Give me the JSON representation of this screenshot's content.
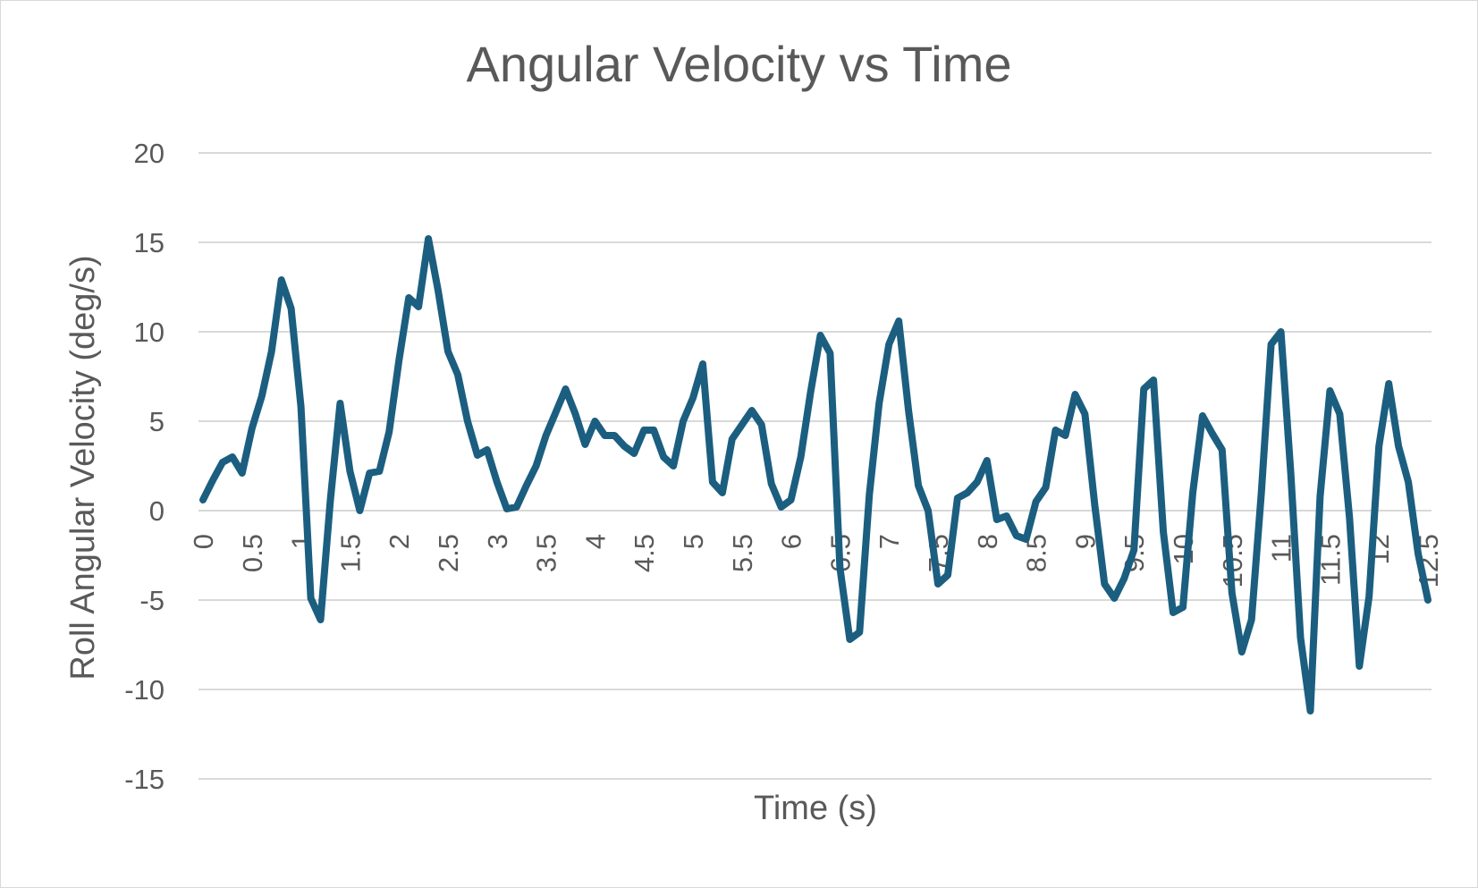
{
  "chart_data": {
    "type": "line",
    "title": "Angular Velocity vs Time",
    "xlabel": "Time (s)",
    "ylabel": "Roll Angular Velocity (deg/s)",
    "ylim": [
      -15,
      20
    ],
    "yticks": [
      -15,
      -10,
      -5,
      0,
      5,
      10,
      15,
      20
    ],
    "xtick_labels": [
      "0",
      "0.5",
      "1",
      "1.5",
      "2",
      "2.5",
      "3",
      "3.5",
      "4",
      "4.5",
      "5",
      "5.5",
      "6",
      "6.5",
      "7",
      "7.5",
      "8",
      "8.5",
      "9",
      "9.5",
      "10",
      "10.5",
      "11",
      "11.5",
      "12",
      "12.5"
    ],
    "grid": true,
    "legend": "none",
    "color": "#1b5e80",
    "series": [
      {
        "x": [
          0,
          0.1,
          0.2,
          0.3,
          0.4,
          0.5,
          0.6,
          0.7,
          0.8,
          0.9,
          1.0,
          1.1,
          1.2,
          1.3,
          1.4,
          1.5,
          1.6,
          1.7,
          1.8,
          1.9,
          2.0,
          2.1,
          2.2,
          2.3,
          2.4,
          2.5,
          2.6,
          2.7,
          2.8,
          2.9,
          3.0,
          3.1,
          3.2,
          3.3,
          3.4,
          3.5,
          3.6,
          3.7,
          3.8,
          3.9,
          4.0,
          4.1,
          4.2,
          4.3,
          4.4,
          4.5,
          4.6,
          4.7,
          4.8,
          4.9,
          5.0,
          5.1,
          5.2,
          5.3,
          5.4,
          5.5,
          5.6,
          5.7,
          5.8,
          5.9,
          6.0,
          6.1,
          6.2,
          6.3,
          6.4,
          6.5,
          6.6,
          6.7,
          6.8,
          6.9,
          7.0,
          7.1,
          7.2,
          7.3,
          7.4,
          7.5,
          7.6,
          7.7,
          7.8,
          7.9,
          8.0,
          8.1,
          8.2,
          8.3,
          8.4,
          8.5,
          8.6,
          8.7,
          8.8,
          8.9,
          9.0,
          9.1,
          9.2,
          9.3,
          9.4,
          9.5,
          9.6,
          9.7,
          9.8,
          9.9,
          10.0,
          10.1,
          10.2,
          10.3,
          10.4,
          10.5,
          10.6,
          10.7,
          10.8,
          10.9,
          11.0,
          11.1,
          11.2,
          11.3,
          11.4,
          11.5,
          11.6,
          11.7,
          11.8,
          11.9,
          12.0,
          12.1,
          12.2,
          12.3,
          12.4,
          12.5
        ],
        "y": [
          0.6,
          1.7,
          2.7,
          3.0,
          2.1,
          4.6,
          6.4,
          8.9,
          12.9,
          11.3,
          5.8,
          -4.9,
          -6.1,
          0.6,
          6.0,
          2.2,
          0.0,
          2.1,
          2.2,
          4.4,
          8.4,
          11.9,
          11.4,
          15.2,
          12.3,
          8.9,
          7.6,
          5.0,
          3.1,
          3.4,
          1.6,
          0.1,
          0.2,
          1.4,
          2.5,
          4.2,
          5.5,
          6.8,
          5.4,
          3.7,
          5.0,
          4.2,
          4.2,
          3.6,
          3.2,
          4.5,
          4.5,
          3.0,
          2.5,
          5.0,
          6.3,
          8.2,
          1.6,
          1.0,
          4.0,
          4.8,
          5.6,
          4.8,
          1.5,
          0.2,
          0.6,
          3.0,
          6.6,
          9.8,
          8.8,
          -3.2,
          -7.2,
          -6.8,
          0.9,
          6.0,
          9.3,
          10.6,
          5.6,
          1.4,
          0.0,
          -4.1,
          -3.6,
          0.7,
          1.0,
          1.6,
          2.8,
          -0.5,
          -0.3,
          -1.4,
          -1.6,
          0.5,
          1.3,
          4.5,
          4.2,
          6.5,
          5.4,
          0.3,
          -4.1,
          -4.9,
          -3.8,
          -2.2,
          6.8,
          7.3,
          -1.2,
          -5.7,
          -5.4,
          1.0,
          5.3,
          4.3,
          3.4,
          -4.6,
          -7.9,
          -6.1,
          1.0,
          9.3,
          10.0,
          2.1,
          -7.1,
          -11.2,
          0.8,
          6.7,
          5.4,
          -0.4,
          -8.7,
          -4.8,
          3.6,
          7.1,
          3.6,
          1.6,
          -2.4,
          -5.0
        ]
      }
    ]
  }
}
